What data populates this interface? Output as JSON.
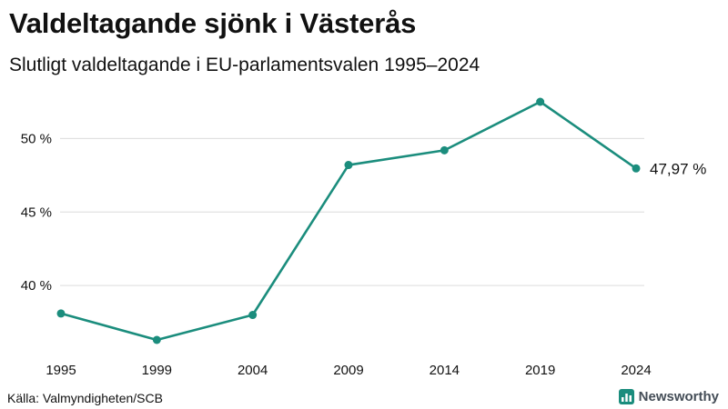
{
  "header": {
    "title": "Valdeltagande sjönk i Västerås",
    "subtitle": "Slutligt valdeltagande i EU-parlamentsvalen 1995–2024"
  },
  "footer": {
    "source": "Källa: Valmyndigheten/SCB",
    "brand": "Newsworthy",
    "brand_icon": "newsworthy-logo-icon"
  },
  "colors": {
    "line": "#1b8d7d",
    "grid": "#dcdcdc",
    "text": "#111111",
    "brand": "#1b8d7d"
  },
  "chart_data": {
    "type": "line",
    "title": "Valdeltagande sjönk i Västerås",
    "subtitle": "Slutligt valdeltagande i EU-parlamentsvalen 1995–2024",
    "xlabel": "",
    "ylabel": "",
    "categories": [
      "1995",
      "1999",
      "2004",
      "2009",
      "2014",
      "2019",
      "2024"
    ],
    "series": [
      {
        "name": "Valdeltagande",
        "values": [
          38.1,
          36.3,
          38.0,
          48.2,
          49.2,
          52.5,
          47.97
        ]
      }
    ],
    "y_ticks": [
      40,
      45,
      50
    ],
    "y_tick_labels": [
      "40 %",
      "45 %",
      "50 %"
    ],
    "ylim": [
      36.3,
      52.5
    ],
    "grid": true,
    "end_label": "47,97 %"
  }
}
